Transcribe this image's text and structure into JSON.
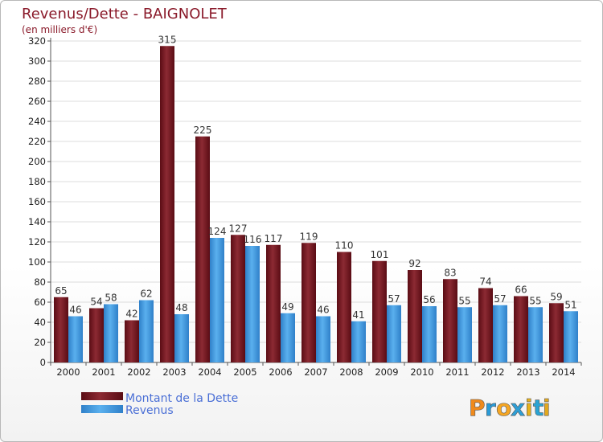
{
  "chart_data": {
    "type": "bar",
    "title": "Revenus/Dette - BAIGNOLET",
    "subtitle": "(en milliers d'€)",
    "categories": [
      "2000",
      "2001",
      "2002",
      "2003",
      "2004",
      "2005",
      "2006",
      "2007",
      "2008",
      "2009",
      "2010",
      "2011",
      "2012",
      "2013",
      "2014"
    ],
    "series": [
      {
        "name": "Montant de la Dette",
        "color": "#6e1a20",
        "values": [
          65,
          54,
          42,
          315,
          225,
          127,
          117,
          119,
          110,
          101,
          92,
          83,
          74,
          66,
          59
        ]
      },
      {
        "name": "Revenus",
        "color": "#3b93d9",
        "values": [
          46,
          58,
          62,
          48,
          124,
          116,
          49,
          46,
          41,
          57,
          56,
          55,
          57,
          55,
          51
        ]
      }
    ],
    "ylim": [
      0,
      320
    ],
    "yticks": [
      0,
      20,
      40,
      60,
      80,
      100,
      120,
      140,
      160,
      180,
      200,
      220,
      240,
      260,
      280,
      300,
      320
    ],
    "legend_position": "bottom-left"
  },
  "brand": {
    "logo_letters": [
      "P",
      "r",
      "o",
      "x",
      "i",
      "t",
      "i"
    ],
    "logo_colors": [
      "#f08a1c",
      "#2a9bd8",
      "#f5a623",
      "#2e9fd6",
      "#e8b21c",
      "#2aa4d4",
      "#e3a91e"
    ]
  }
}
